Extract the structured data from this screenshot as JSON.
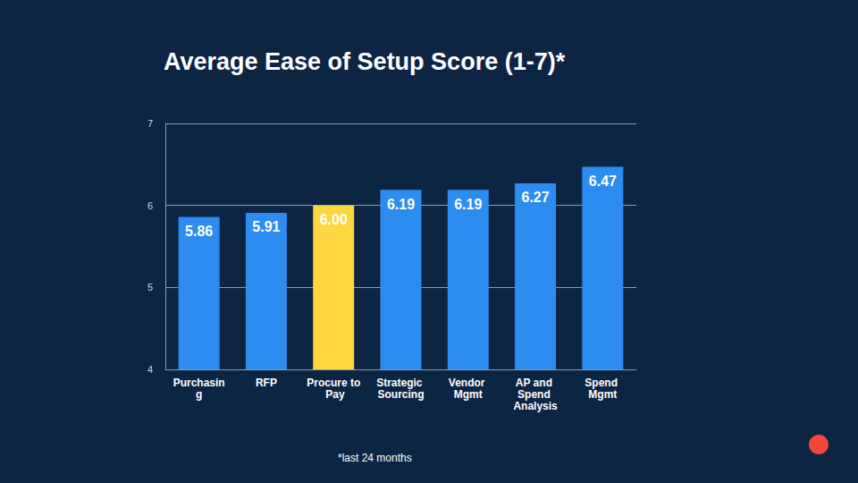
{
  "chart_data": {
    "type": "bar",
    "title": "Average Ease of Setup Score (1-7)*",
    "footnote": "*last 24 months",
    "categories": [
      "Purchasing",
      "RFP",
      "Procure to Pay",
      "Strategic Sourcing",
      "Vendor Mgmt",
      "AP and Spend Analysis",
      "Spend Mgmt"
    ],
    "values": [
      5.86,
      5.91,
      6.0,
      6.19,
      6.19,
      6.27,
      6.47
    ],
    "value_labels": [
      "5.86",
      "5.91",
      "6.00",
      "6.19",
      "6.19",
      "6.27",
      "6.47"
    ],
    "colors": [
      "#2d8cf0",
      "#2d8cf0",
      "#fdd640",
      "#2d8cf0",
      "#2d8cf0",
      "#2d8cf0",
      "#2d8cf0"
    ],
    "ylim": [
      4,
      7
    ],
    "yticks": [
      4,
      5,
      6,
      7
    ],
    "grid": true,
    "data_labels": true
  }
}
